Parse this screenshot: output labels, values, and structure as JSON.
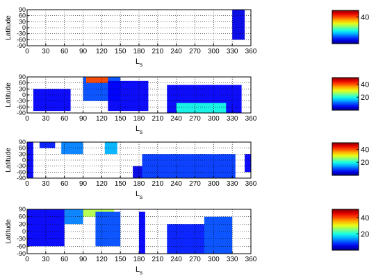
{
  "chart_data": [
    {
      "type": "heatmap",
      "xlabel": "L",
      "xlabel_sub": "s",
      "ylabel": "Latitude",
      "xlim": [
        0,
        360
      ],
      "ylim": [
        -90,
        90
      ],
      "x_ticks": [
        0,
        30,
        60,
        90,
        120,
        150,
        180,
        210,
        240,
        270,
        300,
        330,
        360
      ],
      "y_ticks": [
        90,
        60,
        30,
        0,
        -30,
        -60,
        -90
      ],
      "grid": true,
      "colorbar": {
        "ticks": [
          40
        ],
        "range": [
          0,
          50
        ],
        "colormap": "jet"
      },
      "regions": [
        {
          "ls": [
            330,
            350
          ],
          "lat": [
            -60,
            90
          ],
          "level": 0.1
        }
      ]
    },
    {
      "type": "heatmap",
      "xlabel": "L",
      "xlabel_sub": "s",
      "ylabel": "Latitude",
      "xlim": [
        0,
        360
      ],
      "ylim": [
        -90,
        90
      ],
      "x_ticks": [
        0,
        30,
        60,
        90,
        120,
        150,
        180,
        210,
        240,
        270,
        300,
        330,
        360
      ],
      "y_ticks": [
        90,
        60,
        30,
        0,
        -30,
        -60,
        -90
      ],
      "grid": true,
      "colorbar": {
        "ticks": [
          40,
          20
        ],
        "range": [
          0,
          50
        ],
        "colormap": "jet"
      },
      "regions": [
        {
          "ls": [
            10,
            70
          ],
          "lat": [
            -80,
            30
          ],
          "level": 0.12
        },
        {
          "ls": [
            90,
            150
          ],
          "lat": [
            -30,
            90
          ],
          "level": 0.2
        },
        {
          "ls": [
            95,
            130
          ],
          "lat": [
            60,
            90
          ],
          "level": 0.8
        },
        {
          "ls": [
            130,
            195
          ],
          "lat": [
            -80,
            70
          ],
          "level": 0.12
        },
        {
          "ls": [
            225,
            345
          ],
          "lat": [
            -90,
            50
          ],
          "level": 0.12
        },
        {
          "ls": [
            240,
            320
          ],
          "lat": [
            -90,
            -40
          ],
          "level": 0.4
        }
      ]
    },
    {
      "type": "heatmap",
      "xlabel": "L",
      "xlabel_sub": "s",
      "ylabel": "Latitude",
      "xlim": [
        0,
        360
      ],
      "ylim": [
        -90,
        90
      ],
      "x_ticks": [
        0,
        30,
        60,
        90,
        120,
        150,
        180,
        210,
        240,
        270,
        300,
        330,
        360
      ],
      "y_ticks": [
        90,
        60,
        30,
        0,
        -30,
        -60,
        -90
      ],
      "grid": true,
      "colorbar": {
        "ticks": [
          40,
          20
        ],
        "range": [
          0,
          50
        ],
        "colormap": "jet"
      },
      "regions": [
        {
          "ls": [
            0,
            10
          ],
          "lat": [
            -90,
            90
          ],
          "level": 0.12
        },
        {
          "ls": [
            20,
            45
          ],
          "lat": [
            60,
            90
          ],
          "level": 0.15
        },
        {
          "ls": [
            55,
            90
          ],
          "lat": [
            30,
            90
          ],
          "level": 0.25
        },
        {
          "ls": [
            125,
            145
          ],
          "lat": [
            30,
            90
          ],
          "level": 0.3
        },
        {
          "ls": [
            170,
            185
          ],
          "lat": [
            -90,
            -30
          ],
          "level": 0.1
        },
        {
          "ls": [
            185,
            335
          ],
          "lat": [
            -90,
            30
          ],
          "level": 0.18
        },
        {
          "ls": [
            350,
            360
          ],
          "lat": [
            -60,
            30
          ],
          "level": 0.12
        }
      ]
    },
    {
      "type": "heatmap",
      "xlabel": "L",
      "xlabel_sub": "s",
      "ylabel": "Latitude",
      "xlim": [
        0,
        360
      ],
      "ylim": [
        -90,
        90
      ],
      "x_ticks": [
        0,
        30,
        60,
        90,
        120,
        150,
        180,
        210,
        240,
        270,
        300,
        330,
        360
      ],
      "y_ticks": [
        90,
        60,
        30,
        0,
        -30,
        -60,
        -90
      ],
      "grid": true,
      "colorbar": {
        "ticks": [
          40,
          20
        ],
        "range": [
          0,
          50
        ],
        "colormap": "jet"
      },
      "regions": [
        {
          "ls": [
            0,
            60
          ],
          "lat": [
            -60,
            90
          ],
          "level": 0.12
        },
        {
          "ls": [
            60,
            90
          ],
          "lat": [
            30,
            90
          ],
          "level": 0.25
        },
        {
          "ls": [
            90,
            140
          ],
          "lat": [
            60,
            90
          ],
          "level": 0.55
        },
        {
          "ls": [
            110,
            150
          ],
          "lat": [
            -60,
            80
          ],
          "level": 0.2
        },
        {
          "ls": [
            180,
            190
          ],
          "lat": [
            -90,
            80
          ],
          "level": 0.12
        },
        {
          "ls": [
            225,
            285
          ],
          "lat": [
            -90,
            30
          ],
          "level": 0.15
        },
        {
          "ls": [
            285,
            330
          ],
          "lat": [
            -90,
            60
          ],
          "level": 0.2
        }
      ]
    }
  ]
}
